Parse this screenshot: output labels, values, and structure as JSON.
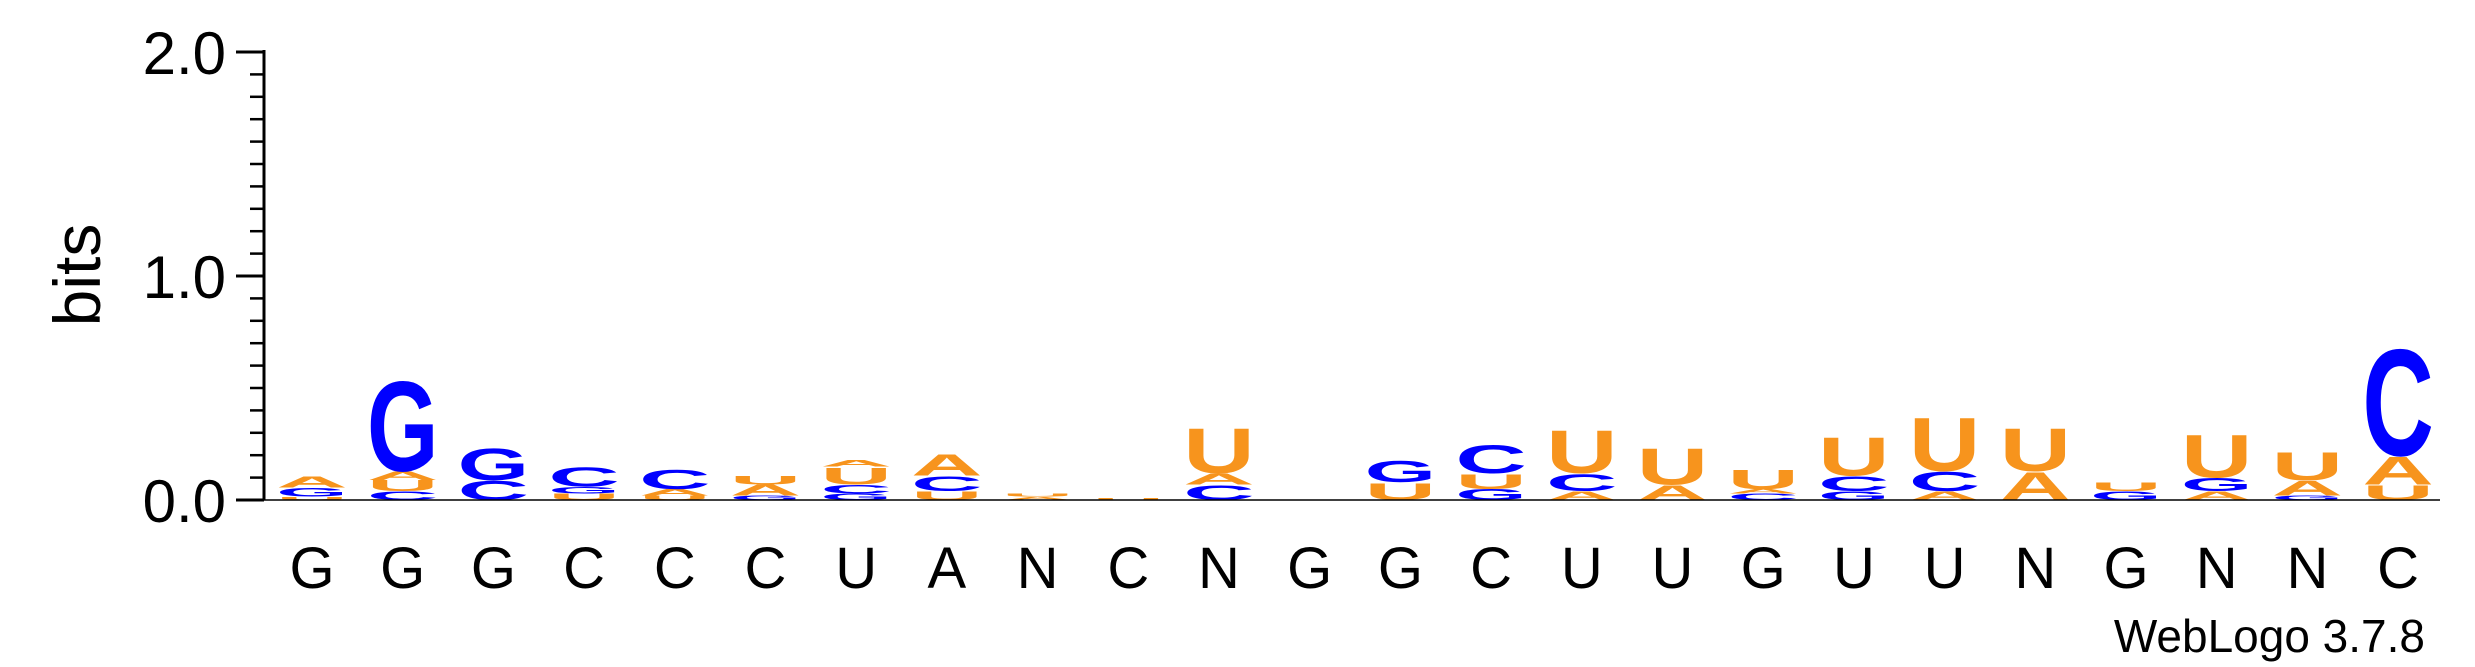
{
  "chart_data": {
    "type": "sequence_logo",
    "title": "",
    "ylabel": "bits",
    "xlabel": "",
    "ylim": [
      0,
      2.0
    ],
    "yticks": [
      "0.0",
      "1.0",
      "2.0"
    ],
    "credit": "WebLogo 3.7.8",
    "colors": {
      "A": "#f7941d",
      "U": "#f7941d",
      "G": "#0000ff",
      "C": "#0000ff",
      "N": "#0000ff"
    },
    "positions": [
      "G",
      "G",
      "G",
      "C",
      "C",
      "C",
      "U",
      "A",
      "N",
      "C",
      "N",
      "G",
      "G",
      "C",
      "U",
      "U",
      "G",
      "U",
      "U",
      "N",
      "G",
      "N",
      "N",
      "C"
    ],
    "stacks": [
      [
        {
          "l": "U",
          "h": 0.015
        },
        {
          "l": "G",
          "h": 0.04
        },
        {
          "l": "A",
          "h": 0.05
        }
      ],
      [
        {
          "l": "C",
          "h": 0.04
        },
        {
          "l": "U",
          "h": 0.05
        },
        {
          "l": "A",
          "h": 0.04
        },
        {
          "l": "G",
          "h": 0.42
        }
      ],
      [
        {
          "l": "C",
          "h": 0.09
        },
        {
          "l": "G",
          "h": 0.15
        }
      ],
      [
        {
          "l": "U",
          "h": 0.03
        },
        {
          "l": "G",
          "h": 0.03
        },
        {
          "l": "C",
          "h": 0.09
        }
      ],
      [
        {
          "l": "U",
          "h": 0.02
        },
        {
          "l": "A",
          "h": 0.03
        },
        {
          "l": "C",
          "h": 0.09
        }
      ],
      [
        {
          "l": "G",
          "h": 0.02
        },
        {
          "l": "A",
          "h": 0.05
        },
        {
          "l": "U",
          "h": 0.04
        }
      ],
      [
        {
          "l": "G",
          "h": 0.03
        },
        {
          "l": "C",
          "h": 0.04
        },
        {
          "l": "U",
          "h": 0.08
        },
        {
          "l": "A",
          "h": 0.03
        }
      ],
      [
        {
          "l": "U",
          "h": 0.04
        },
        {
          "l": "C",
          "h": 0.07
        },
        {
          "l": "A",
          "h": 0.1
        }
      ],
      [
        {
          "l": "A",
          "h": 0.015
        },
        {
          "l": "U",
          "h": 0.015
        }
      ],
      [
        {
          "l": "U",
          "h": 0.01
        }
      ],
      [
        {
          "l": "C",
          "h": 0.07
        },
        {
          "l": "A",
          "h": 0.05
        },
        {
          "l": "U",
          "h": 0.21
        }
      ],
      [],
      [
        {
          "l": "U",
          "h": 0.08
        },
        {
          "l": "G",
          "h": 0.1
        }
      ],
      [
        {
          "l": "G",
          "h": 0.05
        },
        {
          "l": "U",
          "h": 0.07
        },
        {
          "l": "C",
          "h": 0.13
        }
      ],
      [
        {
          "l": "A",
          "h": 0.04
        },
        {
          "l": "C",
          "h": 0.08
        },
        {
          "l": "U",
          "h": 0.2
        }
      ],
      [
        {
          "l": "A",
          "h": 0.07
        },
        {
          "l": "U",
          "h": 0.17
        }
      ],
      [
        {
          "l": "C",
          "h": 0.03
        },
        {
          "l": "A",
          "h": 0.02
        },
        {
          "l": "U",
          "h": 0.09
        }
      ],
      [
        {
          "l": "G",
          "h": 0.04
        },
        {
          "l": "C",
          "h": 0.07
        },
        {
          "l": "U",
          "h": 0.18
        }
      ],
      [
        {
          "l": "A",
          "h": 0.04
        },
        {
          "l": "C",
          "h": 0.09
        },
        {
          "l": "U",
          "h": 0.25
        }
      ],
      [
        {
          "l": "A",
          "h": 0.13
        },
        {
          "l": "U",
          "h": 0.2
        }
      ],
      [
        {
          "l": "G",
          "h": 0.04
        },
        {
          "l": "U",
          "h": 0.04
        }
      ],
      [
        {
          "l": "A",
          "h": 0.04
        },
        {
          "l": "G",
          "h": 0.06
        },
        {
          "l": "U",
          "h": 0.2
        }
      ],
      [
        {
          "l": "G",
          "h": 0.02
        },
        {
          "l": "A",
          "h": 0.07
        },
        {
          "l": "U",
          "h": 0.13
        }
      ],
      [
        {
          "l": "U",
          "h": 0.07
        },
        {
          "l": "A",
          "h": 0.13
        },
        {
          "l": "C",
          "h": 0.5
        }
      ]
    ]
  }
}
